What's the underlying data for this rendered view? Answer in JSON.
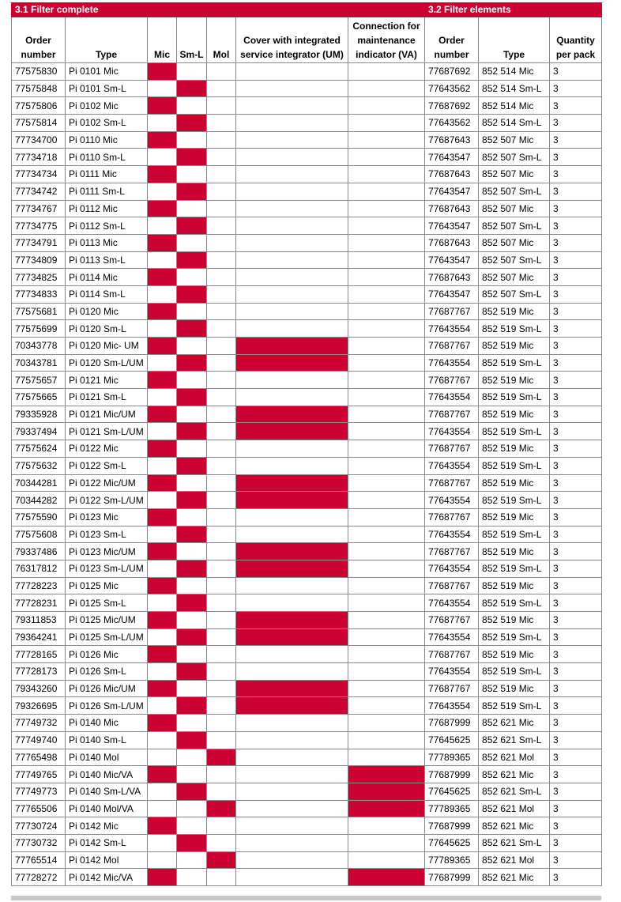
{
  "sections": {
    "filter_complete": "3.1 Filter complete",
    "filter_elements": "3.2 Filter elements"
  },
  "headers": {
    "order_number": "Order number",
    "type": "Type",
    "mic": "Mic",
    "sml": "Sm-L",
    "mol": "Mol",
    "um": "Cover with integrated service integrator (UM)",
    "va": "Connection for maintenance indicator (VA)",
    "el_order_number": "Order number",
    "el_type": "Type",
    "qty": "Quantity per pack"
  },
  "colors": {
    "accent": "#cc0033"
  },
  "rows": [
    {
      "order": "77575830",
      "type": "Pi 0101 Mic",
      "mic": true,
      "sml": false,
      "mol": false,
      "um": false,
      "va": false,
      "el_order": "77687692",
      "el_type": "852 514 Mic",
      "qty": "3"
    },
    {
      "order": "77575848",
      "type": "Pi 0101 Sm-L",
      "mic": false,
      "sml": true,
      "mol": false,
      "um": false,
      "va": false,
      "el_order": "77643562",
      "el_type": "852 514 Sm-L",
      "qty": "3"
    },
    {
      "order": "77575806",
      "type": "Pi 0102 Mic",
      "mic": true,
      "sml": false,
      "mol": false,
      "um": false,
      "va": false,
      "el_order": "77687692",
      "el_type": "852 514 Mic",
      "qty": "3"
    },
    {
      "order": "77575814",
      "type": "Pi 0102 Sm-L",
      "mic": false,
      "sml": true,
      "mol": false,
      "um": false,
      "va": false,
      "el_order": "77643562",
      "el_type": "852 514 Sm-L",
      "qty": "3"
    },
    {
      "order": "77734700",
      "type": "Pi 0110 Mic",
      "mic": true,
      "sml": false,
      "mol": false,
      "um": false,
      "va": false,
      "el_order": "77687643",
      "el_type": "852 507 Mic",
      "qty": "3"
    },
    {
      "order": "77734718",
      "type": "Pi 0110 Sm-L",
      "mic": false,
      "sml": true,
      "mol": false,
      "um": false,
      "va": false,
      "el_order": "77643547",
      "el_type": "852 507 Sm-L",
      "qty": "3"
    },
    {
      "order": "77734734",
      "type": "Pi 0111 Mic",
      "mic": true,
      "sml": false,
      "mol": false,
      "um": false,
      "va": false,
      "el_order": "77687643",
      "el_type": "852 507 Mic",
      "qty": "3"
    },
    {
      "order": "77734742",
      "type": "Pi 0111 Sm-L",
      "mic": false,
      "sml": true,
      "mol": false,
      "um": false,
      "va": false,
      "el_order": "77643547",
      "el_type": "852 507 Sm-L",
      "qty": "3"
    },
    {
      "order": "77734767",
      "type": "Pi 0112 Mic",
      "mic": true,
      "sml": false,
      "mol": false,
      "um": false,
      "va": false,
      "el_order": "77687643",
      "el_type": "852 507 Mic",
      "qty": "3"
    },
    {
      "order": "77734775",
      "type": "Pi 0112 Sm-L",
      "mic": false,
      "sml": true,
      "mol": false,
      "um": false,
      "va": false,
      "el_order": "77643547",
      "el_type": "852 507 Sm-L",
      "qty": "3"
    },
    {
      "order": "77734791",
      "type": "Pi 0113 Mic",
      "mic": true,
      "sml": false,
      "mol": false,
      "um": false,
      "va": false,
      "el_order": "77687643",
      "el_type": "852 507 Mic",
      "qty": "3"
    },
    {
      "order": "77734809",
      "type": "Pi 0113 Sm-L",
      "mic": false,
      "sml": true,
      "mol": false,
      "um": false,
      "va": false,
      "el_order": "77643547",
      "el_type": "852 507 Sm-L",
      "qty": "3"
    },
    {
      "order": "77734825",
      "type": "Pi 0114 Mic",
      "mic": true,
      "sml": false,
      "mol": false,
      "um": false,
      "va": false,
      "el_order": "77687643",
      "el_type": "852 507 Mic",
      "qty": "3"
    },
    {
      "order": "77734833",
      "type": "Pi 0114 Sm-L",
      "mic": false,
      "sml": true,
      "mol": false,
      "um": false,
      "va": false,
      "el_order": "77643547",
      "el_type": "852 507 Sm-L",
      "qty": "3"
    },
    {
      "order": "77575681",
      "type": "Pi 0120 Mic",
      "mic": true,
      "sml": false,
      "mol": false,
      "um": false,
      "va": false,
      "el_order": "77687767",
      "el_type": "852 519 Mic",
      "qty": "3"
    },
    {
      "order": "77575699",
      "type": "Pi 0120 Sm-L",
      "mic": false,
      "sml": true,
      "mol": false,
      "um": false,
      "va": false,
      "el_order": "77643554",
      "el_type": "852 519 Sm-L",
      "qty": "3"
    },
    {
      "order": "70343778",
      "type": "Pi 0120 Mic- UM",
      "mic": true,
      "sml": false,
      "mol": false,
      "um": true,
      "va": false,
      "el_order": "77687767",
      "el_type": "852 519 Mic",
      "qty": "3"
    },
    {
      "order": "70343781",
      "type": "Pi 0120 Sm-L/UM",
      "mic": false,
      "sml": true,
      "mol": false,
      "um": true,
      "va": false,
      "el_order": "77643554",
      "el_type": "852 519 Sm-L",
      "qty": "3"
    },
    {
      "order": "77575657",
      "type": "Pi 0121 Mic",
      "mic": true,
      "sml": false,
      "mol": false,
      "um": false,
      "va": false,
      "el_order": "77687767",
      "el_type": "852 519 Mic",
      "qty": "3"
    },
    {
      "order": "77575665",
      "type": "Pi 0121 Sm-L",
      "mic": false,
      "sml": true,
      "mol": false,
      "um": false,
      "va": false,
      "el_order": "77643554",
      "el_type": "852 519 Sm-L",
      "qty": "3"
    },
    {
      "order": "79335928",
      "type": "Pi 0121 Mic/UM",
      "mic": true,
      "sml": false,
      "mol": false,
      "um": true,
      "va": false,
      "el_order": "77687767",
      "el_type": "852 519 Mic",
      "qty": "3"
    },
    {
      "order": "79337494",
      "type": "Pi 0121 Sm-L/UM",
      "mic": false,
      "sml": true,
      "mol": false,
      "um": true,
      "va": false,
      "el_order": "77643554",
      "el_type": "852 519 Sm-L",
      "qty": "3"
    },
    {
      "order": "77575624",
      "type": "Pi 0122 Mic",
      "mic": true,
      "sml": false,
      "mol": false,
      "um": false,
      "va": false,
      "el_order": "77687767",
      "el_type": "852 519 Mic",
      "qty": "3"
    },
    {
      "order": "77575632",
      "type": "Pi 0122 Sm-L",
      "mic": false,
      "sml": true,
      "mol": false,
      "um": false,
      "va": false,
      "el_order": "77643554",
      "el_type": "852 519 Sm-L",
      "qty": "3"
    },
    {
      "order": "70344281",
      "type": "Pi 0122 Mic/UM",
      "mic": true,
      "sml": false,
      "mol": false,
      "um": true,
      "va": false,
      "el_order": "77687767",
      "el_type": "852 519 Mic",
      "qty": "3"
    },
    {
      "order": "70344282",
      "type": "Pi 0122 Sm-L/UM",
      "mic": false,
      "sml": true,
      "mol": false,
      "um": true,
      "va": false,
      "el_order": "77643554",
      "el_type": "852 519 Sm-L",
      "qty": "3"
    },
    {
      "order": "77575590",
      "type": "Pi 0123 Mic",
      "mic": true,
      "sml": false,
      "mol": false,
      "um": false,
      "va": false,
      "el_order": "77687767",
      "el_type": "852 519 Mic",
      "qty": "3"
    },
    {
      "order": "77575608",
      "type": "Pi 0123 Sm-L",
      "mic": false,
      "sml": true,
      "mol": false,
      "um": false,
      "va": false,
      "el_order": "77643554",
      "el_type": "852 519 Sm-L",
      "qty": "3"
    },
    {
      "order": "79337486",
      "type": "Pi 0123 Mic/UM",
      "mic": true,
      "sml": false,
      "mol": false,
      "um": true,
      "va": false,
      "el_order": "77687767",
      "el_type": "852 519 Mic",
      "qty": "3"
    },
    {
      "order": "76317812",
      "type": "Pi 0123 Sm-L/UM",
      "mic": false,
      "sml": true,
      "mol": false,
      "um": true,
      "va": false,
      "el_order": "77643554",
      "el_type": "852 519 Sm-L",
      "qty": "3"
    },
    {
      "order": "77728223",
      "type": "Pi 0125 Mic",
      "mic": true,
      "sml": false,
      "mol": false,
      "um": false,
      "va": false,
      "el_order": "77687767",
      "el_type": "852 519 Mic",
      "qty": "3"
    },
    {
      "order": "77728231",
      "type": "Pi 0125 Sm-L",
      "mic": false,
      "sml": true,
      "mol": false,
      "um": false,
      "va": false,
      "el_order": "77643554",
      "el_type": "852 519 Sm-L",
      "qty": "3"
    },
    {
      "order": "79311853",
      "type": "Pi 0125 Mic/UM",
      "mic": true,
      "sml": false,
      "mol": false,
      "um": true,
      "va": false,
      "el_order": "77687767",
      "el_type": "852 519 Mic",
      "qty": "3"
    },
    {
      "order": "79364241",
      "type": "Pi 0125 Sm-L/UM",
      "mic": false,
      "sml": true,
      "mol": false,
      "um": true,
      "va": false,
      "el_order": "77643554",
      "el_type": "852 519 Sm-L",
      "qty": "3"
    },
    {
      "order": "77728165",
      "type": "Pi 0126 Mic",
      "mic": true,
      "sml": false,
      "mol": false,
      "um": false,
      "va": false,
      "el_order": "77687767",
      "el_type": "852 519 Mic",
      "qty": "3"
    },
    {
      "order": "77728173",
      "type": "Pi 0126 Sm-L",
      "mic": false,
      "sml": true,
      "mol": false,
      "um": false,
      "va": false,
      "el_order": "77643554",
      "el_type": "852 519 Sm-L",
      "qty": "3"
    },
    {
      "order": "79343260",
      "type": "Pi 0126 Mic/UM",
      "mic": true,
      "sml": false,
      "mol": false,
      "um": true,
      "va": false,
      "el_order": "77687767",
      "el_type": "852 519 Mic",
      "qty": "3"
    },
    {
      "order": "79326695",
      "type": "Pi 0126 Sm-L/UM",
      "mic": false,
      "sml": true,
      "mol": false,
      "um": true,
      "va": false,
      "el_order": "77643554",
      "el_type": "852 519 Sm-L",
      "qty": "3"
    },
    {
      "order": "77749732",
      "type": "Pi 0140 Mic",
      "mic": true,
      "sml": false,
      "mol": false,
      "um": false,
      "va": false,
      "el_order": "77687999",
      "el_type": "852 621 Mic",
      "qty": "3"
    },
    {
      "order": "77749740",
      "type": "Pi 0140 Sm-L",
      "mic": false,
      "sml": true,
      "mol": false,
      "um": false,
      "va": false,
      "el_order": "77645625",
      "el_type": "852 621 Sm-L",
      "qty": "3"
    },
    {
      "order": "77765498",
      "type": "Pi 0140 Mol",
      "mic": false,
      "sml": false,
      "mol": true,
      "um": false,
      "va": false,
      "el_order": "77789365",
      "el_type": "852 621 Mol",
      "qty": "3"
    },
    {
      "order": "77749765",
      "type": "Pi 0140 Mic/VA",
      "mic": true,
      "sml": false,
      "mol": false,
      "um": false,
      "va": true,
      "el_order": "77687999",
      "el_type": "852 621 Mic",
      "qty": "3"
    },
    {
      "order": "77749773",
      "type": "Pi 0140 Sm-L/VA",
      "mic": false,
      "sml": true,
      "mol": false,
      "um": false,
      "va": true,
      "el_order": "77645625",
      "el_type": "852 621 Sm-L",
      "qty": "3"
    },
    {
      "order": "77765506",
      "type": "Pi 0140 Mol/VA",
      "mic": false,
      "sml": false,
      "mol": true,
      "um": false,
      "va": true,
      "el_order": "77789365",
      "el_type": "852 621 Mol",
      "qty": "3"
    },
    {
      "order": "77730724",
      "type": "Pi 0142 Mic",
      "mic": true,
      "sml": false,
      "mol": false,
      "um": false,
      "va": false,
      "el_order": "77687999",
      "el_type": "852 621 Mic",
      "qty": "3"
    },
    {
      "order": "77730732",
      "type": "Pi 0142 Sm-L",
      "mic": false,
      "sml": true,
      "mol": false,
      "um": false,
      "va": false,
      "el_order": "77645625",
      "el_type": "852 621 Sm-L",
      "qty": "3"
    },
    {
      "order": "77765514",
      "type": "Pi 0142 Mol",
      "mic": false,
      "sml": false,
      "mol": true,
      "um": false,
      "va": false,
      "el_order": "77789365",
      "el_type": "852 621 Mol",
      "qty": "3"
    },
    {
      "order": "77728272",
      "type": "Pi 0142 Mic/VA",
      "mic": true,
      "sml": false,
      "mol": false,
      "um": false,
      "va": true,
      "el_order": "77687999",
      "el_type": "852 621 Mic",
      "qty": "3"
    }
  ]
}
